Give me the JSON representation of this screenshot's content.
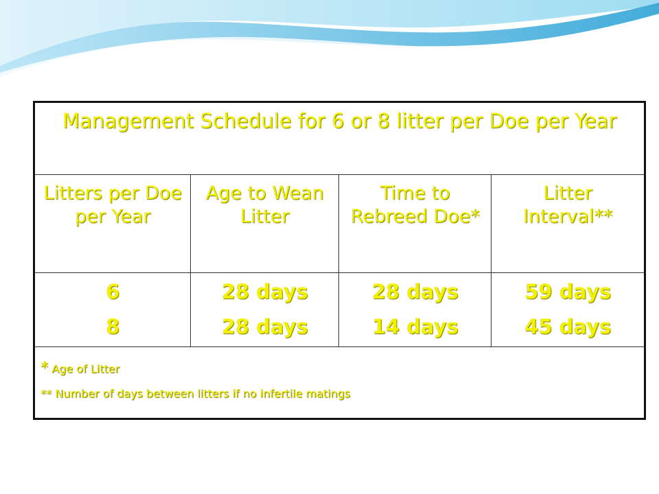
{
  "colors": {
    "text": "#f2f200",
    "border": "#111111",
    "wave_light": "#dff3fb",
    "wave_mid": "#8ed3ee",
    "wave_dark": "#2fa3d6"
  },
  "table": {
    "title": "Management Schedule for 6 or 8 litter per Doe per Year",
    "headers": [
      "Litters per Doe per Year",
      "Age to Wean Litter",
      "Time to Rebreed Doe*",
      "Litter Interval**"
    ],
    "rows": [
      [
        "6",
        "28 days",
        "28 days",
        "59 days"
      ],
      [
        "8",
        "28 days",
        "14 days",
        "45 days"
      ]
    ],
    "notes": {
      "note1_marker": "*",
      "note1_text": " Age of Litter",
      "note2_text": "**  Number of days between litters if no infertile matings"
    }
  }
}
